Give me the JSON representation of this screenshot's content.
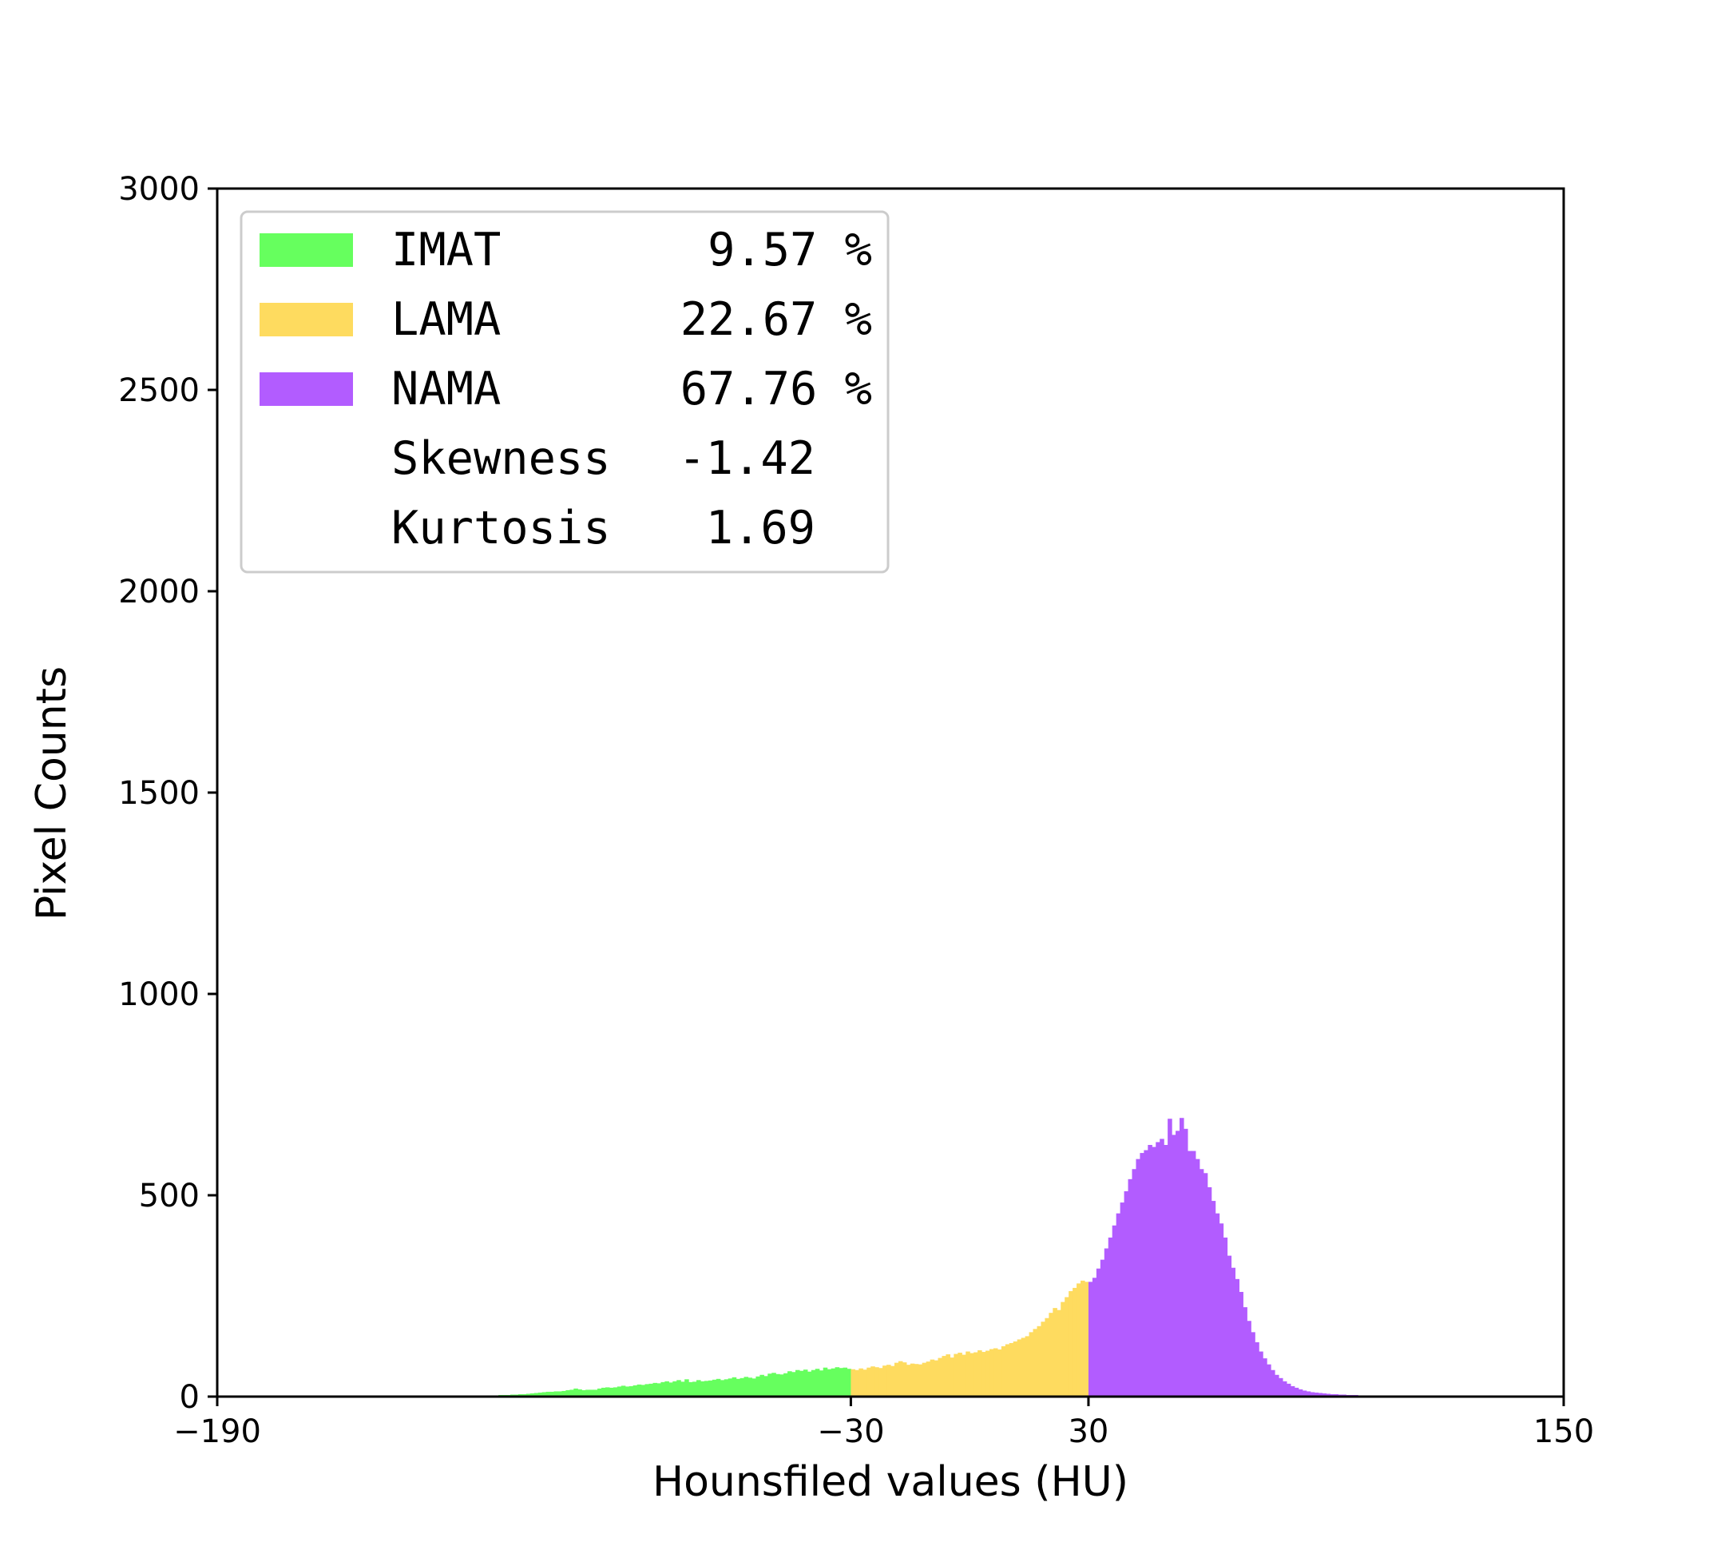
{
  "chart_data": {
    "type": "bar",
    "subtype": "histogram",
    "title": "",
    "xlabel": "Hounsfiled values (HU)",
    "ylabel": "Pixel Counts",
    "xlim": [
      -190,
      150
    ],
    "ylim": [
      0,
      3000
    ],
    "xticks": [
      -190,
      -30,
      30,
      150
    ],
    "xtick_labels": [
      "−190",
      "−30",
      "30",
      "150"
    ],
    "yticks": [
      0,
      500,
      1000,
      1500,
      2000,
      2500,
      3000
    ],
    "ytick_labels": [
      "0",
      "500",
      "1000",
      "1500",
      "2000",
      "2500",
      "3000"
    ],
    "bin_width": 1,
    "grid": false,
    "legend_position": "top-left",
    "series": [
      {
        "name": "IMAT",
        "color": "#66ff5e",
        "range": [
          -190,
          -30
        ],
        "bins": [
          [
            -123,
            2
          ],
          [
            -122,
            2
          ],
          [
            -121,
            3
          ],
          [
            -120,
            3
          ],
          [
            -119,
            3
          ],
          [
            -118,
            4
          ],
          [
            -117,
            4
          ],
          [
            -116,
            4
          ],
          [
            -115,
            5
          ],
          [
            -114,
            5
          ],
          [
            -113,
            6
          ],
          [
            -112,
            6
          ],
          [
            -111,
            7
          ],
          [
            -110,
            8
          ],
          [
            -109,
            9
          ],
          [
            -108,
            10
          ],
          [
            -107,
            11
          ],
          [
            -106,
            12
          ],
          [
            -105,
            12
          ],
          [
            -104,
            13
          ],
          [
            -103,
            13
          ],
          [
            -102,
            14
          ],
          [
            -101,
            16
          ],
          [
            -100,
            17
          ],
          [
            -99,
            20
          ],
          [
            -98,
            18
          ],
          [
            -97,
            16
          ],
          [
            -96,
            17
          ],
          [
            -95,
            17
          ],
          [
            -94,
            17
          ],
          [
            -93,
            20
          ],
          [
            -92,
            22
          ],
          [
            -91,
            23
          ],
          [
            -90,
            22
          ],
          [
            -89,
            23
          ],
          [
            -88,
            25
          ],
          [
            -87,
            27
          ],
          [
            -86,
            25
          ],
          [
            -85,
            26
          ],
          [
            -84,
            28
          ],
          [
            -83,
            30
          ],
          [
            -82,
            29
          ],
          [
            -81,
            31
          ],
          [
            -80,
            32
          ],
          [
            -79,
            34
          ],
          [
            -78,
            33
          ],
          [
            -77,
            36
          ],
          [
            -76,
            38
          ],
          [
            -75,
            35
          ],
          [
            -74,
            38
          ],
          [
            -73,
            41
          ],
          [
            -72,
            37
          ],
          [
            -71,
            43
          ],
          [
            -70,
            36
          ],
          [
            -69,
            37
          ],
          [
            -68,
            41
          ],
          [
            -67,
            38
          ],
          [
            -66,
            39
          ],
          [
            -65,
            40
          ],
          [
            -64,
            42
          ],
          [
            -63,
            44
          ],
          [
            -62,
            41
          ],
          [
            -61,
            43
          ],
          [
            -60,
            45
          ],
          [
            -59,
            48
          ],
          [
            -58,
            44
          ],
          [
            -57,
            46
          ],
          [
            -56,
            49
          ],
          [
            -55,
            47
          ],
          [
            -54,
            45
          ],
          [
            -53,
            50
          ],
          [
            -52,
            54
          ],
          [
            -51,
            51
          ],
          [
            -50,
            57
          ],
          [
            -49,
            59
          ],
          [
            -48,
            56
          ],
          [
            -47,
            55
          ],
          [
            -46,
            58
          ],
          [
            -45,
            63
          ],
          [
            -44,
            61
          ],
          [
            -43,
            66
          ],
          [
            -42,
            64
          ],
          [
            -41,
            67
          ],
          [
            -40,
            62
          ],
          [
            -39,
            66
          ],
          [
            -38,
            69
          ],
          [
            -37,
            65
          ],
          [
            -36,
            72
          ],
          [
            -35,
            68
          ],
          [
            -34,
            70
          ],
          [
            -33,
            73
          ],
          [
            -32,
            71
          ],
          [
            -31,
            72
          ],
          [
            -30,
            69
          ]
        ]
      },
      {
        "name": "LAMA",
        "color": "#fedb5f",
        "range": [
          -30,
          30
        ],
        "bins": [
          [
            -29,
            68
          ],
          [
            -28,
            66
          ],
          [
            -27,
            70
          ],
          [
            -26,
            67
          ],
          [
            -25,
            72
          ],
          [
            -24,
            75
          ],
          [
            -23,
            73
          ],
          [
            -22,
            71
          ],
          [
            -21,
            77
          ],
          [
            -20,
            79
          ],
          [
            -19,
            76
          ],
          [
            -18,
            84
          ],
          [
            -17,
            88
          ],
          [
            -16,
            85
          ],
          [
            -15,
            79
          ],
          [
            -14,
            82
          ],
          [
            -13,
            81
          ],
          [
            -12,
            80
          ],
          [
            -11,
            84
          ],
          [
            -10,
            87
          ],
          [
            -9,
            92
          ],
          [
            -8,
            90
          ],
          [
            -7,
            96
          ],
          [
            -6,
            101
          ],
          [
            -5,
            105
          ],
          [
            -4,
            97
          ],
          [
            -3,
            106
          ],
          [
            -2,
            109
          ],
          [
            -1,
            104
          ],
          [
            0,
            112
          ],
          [
            1,
            108
          ],
          [
            2,
            110
          ],
          [
            3,
            115
          ],
          [
            4,
            111
          ],
          [
            5,
            114
          ],
          [
            6,
            118
          ],
          [
            7,
            120
          ],
          [
            8,
            117
          ],
          [
            9,
            125
          ],
          [
            10,
            130
          ],
          [
            11,
            133
          ],
          [
            12,
            137
          ],
          [
            13,
            142
          ],
          [
            14,
            146
          ],
          [
            15,
            150
          ],
          [
            16,
            160
          ],
          [
            17,
            168
          ],
          [
            18,
            175
          ],
          [
            19,
            186
          ],
          [
            20,
            195
          ],
          [
            21,
            208
          ],
          [
            22,
            220
          ],
          [
            23,
            215
          ],
          [
            24,
            235
          ],
          [
            25,
            247
          ],
          [
            26,
            262
          ],
          [
            27,
            270
          ],
          [
            28,
            281
          ],
          [
            29,
            288
          ],
          [
            30,
            285
          ]
        ]
      },
      {
        "name": "NAMA",
        "color": "#b25cff",
        "range": [
          30,
          150
        ],
        "bins": [
          [
            31,
            285
          ],
          [
            32,
            295
          ],
          [
            33,
            318
          ],
          [
            34,
            340
          ],
          [
            35,
            368
          ],
          [
            36,
            395
          ],
          [
            37,
            425
          ],
          [
            38,
            455
          ],
          [
            39,
            482
          ],
          [
            40,
            510
          ],
          [
            41,
            540
          ],
          [
            42,
            565
          ],
          [
            43,
            590
          ],
          [
            44,
            605
          ],
          [
            45,
            612
          ],
          [
            46,
            625
          ],
          [
            47,
            620
          ],
          [
            48,
            632
          ],
          [
            49,
            640
          ],
          [
            50,
            625
          ],
          [
            51,
            690
          ],
          [
            52,
            650
          ],
          [
            53,
            660
          ],
          [
            54,
            692
          ],
          [
            55,
            665
          ],
          [
            56,
            610
          ],
          [
            57,
            610
          ],
          [
            58,
            590
          ],
          [
            59,
            565
          ],
          [
            60,
            555
          ],
          [
            61,
            520
          ],
          [
            62,
            486
          ],
          [
            63,
            455
          ],
          [
            64,
            430
          ],
          [
            65,
            395
          ],
          [
            66,
            350
          ],
          [
            67,
            320
          ],
          [
            68,
            292
          ],
          [
            69,
            260
          ],
          [
            70,
            222
          ],
          [
            71,
            188
          ],
          [
            72,
            160
          ],
          [
            73,
            135
          ],
          [
            74,
            112
          ],
          [
            75,
            95
          ],
          [
            76,
            80
          ],
          [
            77,
            66
          ],
          [
            78,
            54
          ],
          [
            79,
            46
          ],
          [
            80,
            38
          ],
          [
            81,
            32
          ],
          [
            82,
            26
          ],
          [
            83,
            22
          ],
          [
            84,
            18
          ],
          [
            85,
            15
          ],
          [
            86,
            13
          ],
          [
            87,
            11
          ],
          [
            88,
            10
          ],
          [
            89,
            9
          ],
          [
            90,
            8
          ],
          [
            91,
            7
          ],
          [
            92,
            6
          ],
          [
            93,
            6
          ],
          [
            94,
            5
          ],
          [
            95,
            5
          ],
          [
            96,
            4
          ],
          [
            97,
            4
          ],
          [
            98,
            4
          ],
          [
            99,
            3
          ],
          [
            100,
            3
          ],
          [
            101,
            3
          ],
          [
            102,
            2
          ],
          [
            103,
            2
          ],
          [
            104,
            2
          ],
          [
            105,
            2
          ],
          [
            106,
            2
          ],
          [
            107,
            2
          ],
          [
            108,
            1
          ],
          [
            109,
            1
          ],
          [
            110,
            1
          ],
          [
            111,
            1
          ],
          [
            112,
            1
          ],
          [
            113,
            1
          ],
          [
            114,
            1
          ],
          [
            115,
            1
          ],
          [
            116,
            1
          ],
          [
            117,
            1
          ],
          [
            118,
            1
          ],
          [
            119,
            1
          ],
          [
            120,
            1
          ],
          [
            121,
            1
          ],
          [
            122,
            1
          ],
          [
            123,
            1
          ],
          [
            124,
            1
          ],
          [
            125,
            1
          ],
          [
            126,
            1
          ],
          [
            127,
            1
          ],
          [
            128,
            1
          ],
          [
            129,
            1
          ],
          [
            130,
            1
          ],
          [
            131,
            2
          ],
          [
            132,
            3
          ],
          [
            133,
            2
          ],
          [
            134,
            2
          ],
          [
            135,
            2
          ],
          [
            136,
            1
          ],
          [
            137,
            1
          ],
          [
            138,
            1
          ],
          [
            139,
            1
          ],
          [
            140,
            1
          ]
        ]
      }
    ],
    "legend": [
      {
        "label": "IMAT",
        "value": "9.57 %",
        "color": "#66ff5e"
      },
      {
        "label": "LAMA",
        "value": "22.67 %",
        "color": "#fedb5f"
      },
      {
        "label": "NAMA",
        "value": "67.76 %",
        "color": "#b25cff"
      },
      {
        "label": "Skewness",
        "value": "-1.42",
        "color": ""
      },
      {
        "label": "Kurtosis",
        "value": "1.69",
        "color": ""
      }
    ]
  }
}
